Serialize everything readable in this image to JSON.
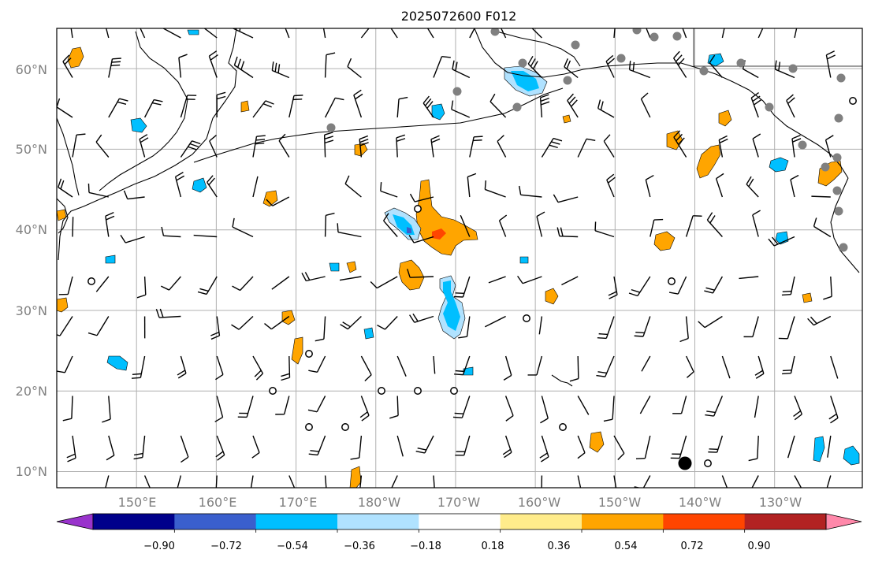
{
  "figure": {
    "title": "2025072600 F012"
  },
  "map": {
    "lat_labels": [
      "60°N",
      "50°N",
      "40°N",
      "30°N",
      "20°N",
      "10°N"
    ],
    "lat_values": [
      60,
      50,
      40,
      30,
      20,
      10
    ],
    "lon_labels": [
      "150°E",
      "160°E",
      "170°E",
      "180°W",
      "170°W",
      "160°W",
      "150°W",
      "140°W",
      "130°W"
    ],
    "lon_values": [
      150,
      160,
      170,
      180,
      190,
      200,
      210,
      220,
      230
    ],
    "extent": {
      "lon_min": 140,
      "lon_max": 241,
      "lat_min": 8,
      "lat_max": 65
    },
    "gridlines": true,
    "features": [
      "coastlines",
      "wind-barbs",
      "station-markers",
      "shaded-contours"
    ]
  },
  "colorbar": {
    "tick_labels": [
      "−0.90",
      "−0.72",
      "−0.54",
      "−0.36",
      "−0.18",
      "0.18",
      "0.36",
      "0.54",
      "0.72",
      "0.90"
    ],
    "bounds": [
      -0.9,
      -0.72,
      -0.54,
      -0.36,
      -0.18,
      0.18,
      0.36,
      0.54,
      0.72,
      0.9
    ],
    "colors": [
      "#9933cc",
      "#00008b",
      "#3a5fcd",
      "#00bfff",
      "#b0e2ff",
      "#ffffff",
      "#ffec8b",
      "#ffa500",
      "#ff4500",
      "#b22222",
      "#ff88aa"
    ],
    "extend": "both"
  },
  "colors": {
    "frame": "#000000",
    "grid": "#b0b0b0",
    "coast": "#000000",
    "station_grey": "#808080",
    "positive_shade": "#ffa500",
    "negative_shade": "#00bfff"
  }
}
